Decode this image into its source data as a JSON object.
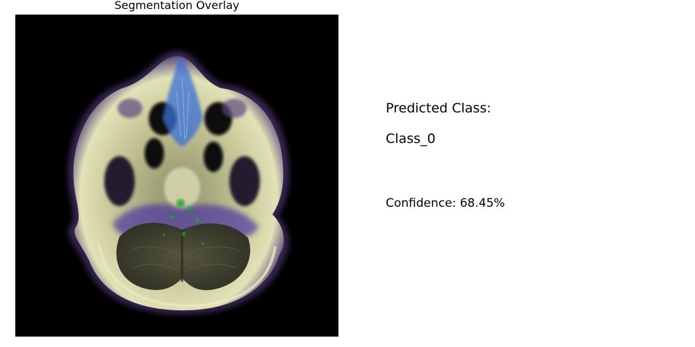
{
  "panel": {
    "title": "Segmentation Overlay"
  },
  "result": {
    "predicted_label": "Predicted Class:",
    "predicted_value": "Class_0",
    "confidence_text": "Confidence: 68.45%"
  },
  "colors": {
    "background": "#ffffff",
    "scan_background": "#000000",
    "skull": "#c9c99a",
    "overlay_blue": "#3b6fd4",
    "overlay_purple": "#6a4aa8",
    "overlay_green": "#1fa82a",
    "brain_tissue": "#4a4a36"
  }
}
